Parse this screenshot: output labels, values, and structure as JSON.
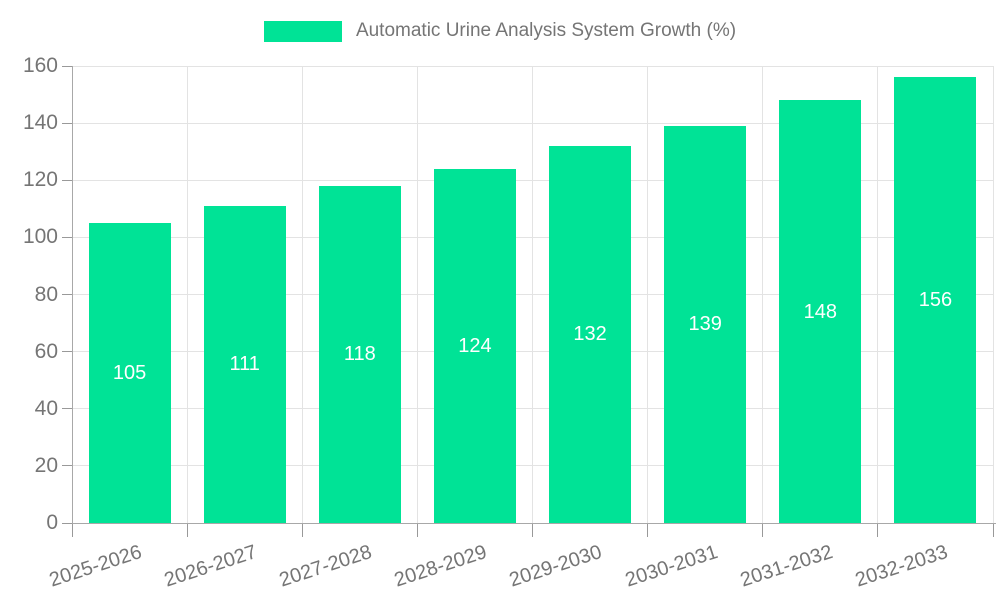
{
  "legend": {
    "label": "Automatic Urine Analysis System Growth (%)"
  },
  "colors": {
    "bar": "#00E396",
    "grid": "#E3E3E3",
    "axis_line": "#A8A8A8",
    "tick": "#999999",
    "axis_text": "#757575",
    "data_label": "#FFFFFF",
    "background": "#FFFFFF"
  },
  "chart_data": {
    "type": "bar",
    "title": "Automatic Urine Analysis System Growth (%)",
    "categories": [
      "2025-2026",
      "2026-2027",
      "2027-2028",
      "2028-2029",
      "2029-2030",
      "2030-2031",
      "2031-2032",
      "2032-2033"
    ],
    "values": [
      105,
      111,
      118,
      124,
      132,
      139,
      148,
      156
    ],
    "xlabel": "",
    "ylabel": "",
    "ylim": [
      0,
      160
    ],
    "ytick_step": 20,
    "yticks": [
      0,
      20,
      40,
      60,
      80,
      100,
      120,
      140,
      160
    ],
    "grid": true,
    "legend_position": "top-center",
    "bar_label_position": "inside-middle",
    "bar_label_color": "#FFFFFF",
    "series_color": "#00E396"
  }
}
